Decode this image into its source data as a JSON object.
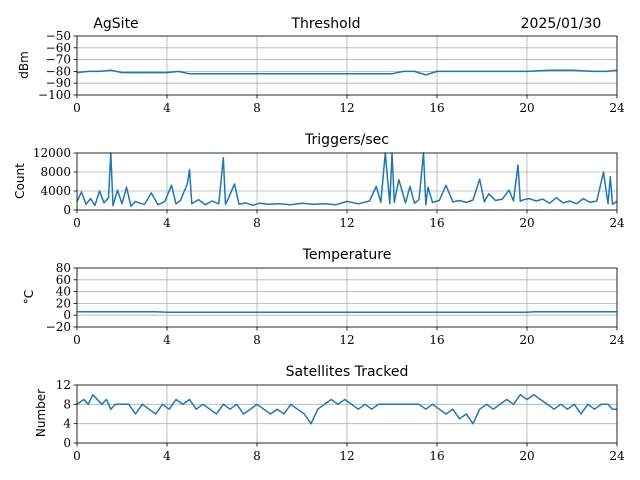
{
  "header": {
    "site": "AgSite",
    "date": "2025/01/30"
  },
  "colors": {
    "series": "#1f77b4",
    "grid": "#b0b0b0"
  },
  "chart_data": [
    {
      "type": "line",
      "title": "Threshold",
      "ylabel": "dBm",
      "xlim": [
        0,
        24
      ],
      "ylim": [
        -100,
        -50
      ],
      "xticks": [
        0,
        4,
        8,
        12,
        16,
        20,
        24
      ],
      "yticks": [
        -100,
        -90,
        -80,
        -70,
        -60,
        -50
      ],
      "ytick_labels": [
        "−100",
        "−90",
        "−80",
        "−70",
        "−60",
        "−50"
      ],
      "grid": true,
      "series": [
        {
          "x": [
            0,
            0.5,
            1,
            1.5,
            2,
            3,
            4,
            4.5,
            5,
            6,
            7,
            8,
            9,
            10,
            11,
            12,
            13,
            14,
            14.5,
            15,
            15.5,
            16,
            17,
            18,
            19,
            20,
            21,
            22,
            23,
            23.5,
            24
          ],
          "values": [
            -81,
            -80,
            -80,
            -79,
            -81,
            -81,
            -81,
            -80,
            -82,
            -82,
            -82,
            -82,
            -82,
            -82,
            -82,
            -82,
            -82,
            -82,
            -80,
            -80,
            -83,
            -80,
            -80,
            -80,
            -80,
            -80,
            -79,
            -79,
            -80,
            -80,
            -79
          ]
        }
      ]
    },
    {
      "type": "line",
      "title": "Triggers/sec",
      "ylabel": "Count",
      "xlim": [
        0,
        24
      ],
      "ylim": [
        0,
        12000
      ],
      "xticks": [
        0,
        4,
        8,
        12,
        16,
        20,
        24
      ],
      "yticks": [
        0,
        4000,
        8000,
        12000
      ],
      "grid": true,
      "series": [
        {
          "x": [
            0,
            0.2,
            0.4,
            0.6,
            0.8,
            1.0,
            1.2,
            1.4,
            1.5,
            1.6,
            1.8,
            2.0,
            2.2,
            2.4,
            2.6,
            2.8,
            3.0,
            3.3,
            3.6,
            3.9,
            4.2,
            4.4,
            4.6,
            4.9,
            5.0,
            5.1,
            5.4,
            5.7,
            6.0,
            6.3,
            6.5,
            6.6,
            6.7,
            7.0,
            7.2,
            7.5,
            7.8,
            8.1,
            8.5,
            9.0,
            9.5,
            10.0,
            10.5,
            11.0,
            11.5,
            12.0,
            12.5,
            13.0,
            13.3,
            13.5,
            13.7,
            13.9,
            14.0,
            14.1,
            14.3,
            14.6,
            14.8,
            15.0,
            15.2,
            15.4,
            15.5,
            15.6,
            15.8,
            16.1,
            16.4,
            16.7,
            17.0,
            17.3,
            17.6,
            17.9,
            18.1,
            18.3,
            18.6,
            18.9,
            19.2,
            19.4,
            19.6,
            19.7,
            19.8,
            20.1,
            20.4,
            20.7,
            21.0,
            21.3,
            21.6,
            21.9,
            22.2,
            22.5,
            22.8,
            23.1,
            23.4,
            23.6,
            23.7,
            23.8,
            24.0
          ],
          "values": [
            1800,
            3800,
            1200,
            2400,
            1000,
            4000,
            1500,
            2600,
            12000,
            900,
            4200,
            1300,
            4800,
            800,
            1800,
            1400,
            1200,
            3600,
            1100,
            1800,
            5200,
            1300,
            2000,
            5500,
            8500,
            1300,
            2200,
            1100,
            1900,
            1300,
            11000,
            1200,
            2200,
            5500,
            1200,
            1500,
            1000,
            1400,
            1200,
            1300,
            1100,
            1400,
            1200,
            1300,
            1100,
            1800,
            1300,
            1900,
            5000,
            1600,
            12000,
            1300,
            12000,
            1600,
            6400,
            1500,
            5000,
            1400,
            2200,
            12000,
            1100,
            4800,
            1600,
            2000,
            5200,
            1700,
            2000,
            1600,
            2100,
            6500,
            1700,
            3400,
            2000,
            2300,
            4200,
            1900,
            9500,
            1800,
            2100,
            2400,
            1900,
            2300,
            1400,
            2600,
            1500,
            1900,
            1300,
            2400,
            1600,
            1900,
            8000,
            1300,
            7000,
            1200,
            1800
          ]
        }
      ]
    },
    {
      "type": "line",
      "title": "Temperature",
      "ylabel": "°C",
      "xlim": [
        0,
        24
      ],
      "ylim": [
        -20,
        80
      ],
      "xticks": [
        0,
        4,
        8,
        12,
        16,
        20,
        24
      ],
      "yticks": [
        -20,
        0,
        20,
        40,
        60,
        80
      ],
      "ytick_labels": [
        "−20",
        "0",
        "20",
        "40",
        "60",
        "80"
      ],
      "grid": true,
      "series": [
        {
          "x": [
            0,
            3,
            3.5,
            4,
            8,
            12,
            16,
            20,
            20.3,
            24
          ],
          "values": [
            6,
            6,
            6,
            5,
            5,
            5,
            5,
            5,
            6,
            6
          ]
        }
      ]
    },
    {
      "type": "line",
      "title": "Satellites Tracked",
      "ylabel": "Number",
      "xlim": [
        0,
        24
      ],
      "ylim": [
        0,
        12
      ],
      "xticks": [
        0,
        4,
        8,
        12,
        16,
        20,
        24
      ],
      "yticks": [
        0,
        4,
        8,
        12
      ],
      "grid": true,
      "series": [
        {
          "x": [
            0,
            0.3,
            0.5,
            0.7,
            0.9,
            1.1,
            1.3,
            1.5,
            1.7,
            2.0,
            2.3,
            2.6,
            2.9,
            3.2,
            3.5,
            3.8,
            4.1,
            4.4,
            4.7,
            5.0,
            5.3,
            5.6,
            5.9,
            6.2,
            6.5,
            6.8,
            7.1,
            7.4,
            7.7,
            8.0,
            8.3,
            8.6,
            8.9,
            9.2,
            9.5,
            9.8,
            10.1,
            10.4,
            10.7,
            11.0,
            11.3,
            11.6,
            11.9,
            12.2,
            12.5,
            12.8,
            13.1,
            13.4,
            13.7,
            14.0,
            14.3,
            14.6,
            14.9,
            15.2,
            15.5,
            15.8,
            16.1,
            16.4,
            16.7,
            17.0,
            17.3,
            17.6,
            17.9,
            18.2,
            18.5,
            18.8,
            19.1,
            19.4,
            19.7,
            20.0,
            20.3,
            20.6,
            20.9,
            21.2,
            21.5,
            21.8,
            22.1,
            22.4,
            22.7,
            23.0,
            23.3,
            23.6,
            23.8,
            24.0
          ],
          "values": [
            8,
            9,
            8,
            10,
            9,
            8,
            9,
            7,
            8,
            8,
            8,
            6,
            8,
            7,
            6,
            8,
            7,
            9,
            8,
            9,
            7,
            8,
            7,
            6,
            8,
            7,
            8,
            6,
            7,
            8,
            7,
            6,
            7,
            6,
            8,
            7,
            6,
            4,
            7,
            8,
            9,
            8,
            9,
            8,
            7,
            8,
            7,
            8,
            8,
            8,
            8,
            8,
            8,
            8,
            7,
            8,
            7,
            6,
            7,
            5,
            6,
            4,
            7,
            8,
            7,
            8,
            9,
            8,
            10,
            9,
            10,
            9,
            8,
            7,
            8,
            7,
            8,
            6,
            8,
            7,
            8,
            8,
            7,
            7
          ]
        }
      ]
    }
  ]
}
